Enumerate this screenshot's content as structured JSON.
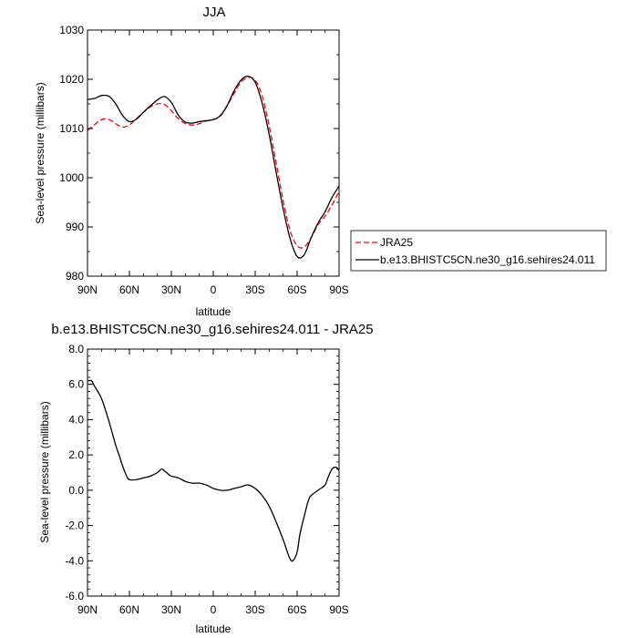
{
  "chart_data": [
    {
      "type": "line",
      "title": "JJA",
      "xlabel": "latitude",
      "ylabel": "Sea-level pressure (millibars)",
      "xlim": [
        90,
        -90
      ],
      "ylim": [
        980,
        1030
      ],
      "x_ticks": [
        90,
        60,
        30,
        0,
        -30,
        -60,
        -90
      ],
      "x_tick_labels": [
        "90N",
        "60N",
        "30N",
        "0",
        "30S",
        "60S",
        "90S"
      ],
      "y_ticks": [
        980,
        990,
        1000,
        1010,
        1020,
        1030
      ],
      "y_tick_labels": [
        "980",
        "990",
        "1000",
        "1010",
        "1020",
        "1030"
      ],
      "grid": false,
      "legend_position": "outside-right",
      "series": [
        {
          "name": "JRA25",
          "color": "#ff0000",
          "dash": "dashed",
          "x": [
            90,
            85,
            80,
            75,
            70,
            65,
            60,
            55,
            50,
            45,
            40,
            35,
            30,
            25,
            20,
            15,
            10,
            5,
            0,
            -5,
            -10,
            -15,
            -20,
            -25,
            -30,
            -35,
            -40,
            -45,
            -50,
            -55,
            -60,
            -65,
            -70,
            -75,
            -80,
            -85,
            -90
          ],
          "values": [
            1009.6,
            1010.8,
            1011.8,
            1011.9,
            1011.0,
            1010.3,
            1010.7,
            1012.0,
            1013.3,
            1014.4,
            1015.0,
            1014.9,
            1013.6,
            1012.0,
            1011.0,
            1010.7,
            1011.0,
            1011.5,
            1011.8,
            1012.5,
            1014.6,
            1017.2,
            1019.5,
            1020.4,
            1019.8,
            1016.6,
            1010.5,
            1003.0,
            995.4,
            989.2,
            986.2,
            985.9,
            987.8,
            990.5,
            992.2,
            994.5,
            997.2
          ]
        },
        {
          "name": "b.e13.BHISTC5CN.ne30_g16.sehires24.011",
          "color": "#000000",
          "dash": "solid",
          "x": [
            90,
            85,
            80,
            75,
            70,
            65,
            60,
            55,
            50,
            45,
            40,
            35,
            30,
            25,
            20,
            15,
            10,
            5,
            0,
            -5,
            -10,
            -15,
            -20,
            -25,
            -30,
            -35,
            -40,
            -45,
            -50,
            -55,
            -60,
            -65,
            -70,
            -75,
            -80,
            -85,
            -90
          ],
          "values": [
            1015.9,
            1016.1,
            1016.7,
            1016.6,
            1015.1,
            1012.7,
            1011.4,
            1011.9,
            1013.3,
            1014.6,
            1015.8,
            1016.5,
            1015.3,
            1012.7,
            1011.3,
            1011.1,
            1011.4,
            1011.6,
            1011.8,
            1012.6,
            1014.7,
            1017.7,
            1019.9,
            1020.6,
            1019.4,
            1015.1,
            1008.8,
            1001.1,
            993.7,
            987.6,
            984.0,
            984.3,
            987.8,
            990.8,
            993.1,
            996.0,
            998.3
          ]
        }
      ]
    },
    {
      "type": "line",
      "title": "b.e13.BHISTC5CN.ne30_g16.sehires24.011 - JRA25",
      "xlabel": "latitude",
      "ylabel": "Sea-level pressure (millibars)",
      "xlim": [
        90,
        -90
      ],
      "ylim": [
        -6.0,
        8.0
      ],
      "x_ticks": [
        90,
        60,
        30,
        0,
        -30,
        -60,
        -90
      ],
      "x_tick_labels": [
        "90N",
        "60N",
        "30N",
        "0",
        "30S",
        "60S",
        "90S"
      ],
      "y_ticks": [
        -6,
        -4,
        -2,
        0,
        2,
        4,
        6,
        8
      ],
      "y_tick_labels": [
        "-6.0",
        "-4.0",
        "-2.0",
        "0.0",
        "2.0",
        "4.0",
        "6.0",
        "8.0"
      ],
      "grid": false,
      "series": [
        {
          "color": "#000000",
          "dash": "solid",
          "x": [
            90,
            87,
            85,
            80,
            75,
            70,
            67,
            65,
            62,
            60,
            55,
            50,
            45,
            40,
            37,
            35,
            32,
            30,
            25,
            20,
            15,
            10,
            5,
            0,
            -5,
            -10,
            -15,
            -20,
            -25,
            -30,
            -35,
            -40,
            -45,
            -50,
            -53,
            -55,
            -57,
            -60,
            -62,
            -65,
            -68,
            -70,
            -75,
            -80,
            -82,
            -85,
            -88,
            -90
          ],
          "values": [
            6.2,
            6.2,
            5.9,
            5.2,
            4.0,
            2.6,
            1.9,
            1.4,
            0.8,
            0.6,
            0.6,
            0.7,
            0.8,
            1.0,
            1.2,
            1.1,
            0.9,
            0.8,
            0.7,
            0.5,
            0.4,
            0.4,
            0.3,
            0.1,
            0.0,
            0.0,
            0.1,
            0.2,
            0.3,
            0.1,
            -0.3,
            -0.9,
            -1.8,
            -2.8,
            -3.5,
            -3.9,
            -4.0,
            -3.5,
            -2.5,
            -1.5,
            -0.6,
            -0.3,
            0.0,
            0.3,
            0.7,
            1.2,
            1.3,
            1.1
          ]
        }
      ]
    }
  ]
}
